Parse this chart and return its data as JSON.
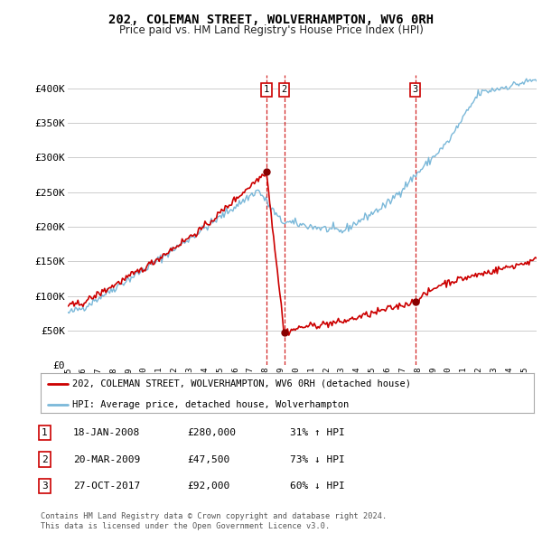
{
  "title": "202, COLEMAN STREET, WOLVERHAMPTON, WV6 0RH",
  "subtitle": "Price paid vs. HM Land Registry's House Price Index (HPI)",
  "legend_line1": "202, COLEMAN STREET, WOLVERHAMPTON, WV6 0RH (detached house)",
  "legend_line2": "HPI: Average price, detached house, Wolverhampton",
  "footer1": "Contains HM Land Registry data © Crown copyright and database right 2024.",
  "footer2": "This data is licensed under the Open Government Licence v3.0.",
  "transactions": [
    {
      "num": "1",
      "date": "18-JAN-2008",
      "price": "£280,000",
      "change": "31% ↑ HPI",
      "x_year": 2008.05,
      "y_val": 280000
    },
    {
      "num": "2",
      "date": "20-MAR-2009",
      "price": "£47,500",
      "change": "73% ↓ HPI",
      "x_year": 2009.22,
      "y_val": 47500
    },
    {
      "num": "3",
      "date": "27-OCT-2017",
      "price": "£92,000",
      "change": "60% ↓ HPI",
      "x_year": 2017.82,
      "y_val": 92000
    }
  ],
  "hpi_color": "#7ab8d9",
  "price_color": "#cc0000",
  "vline_color": "#cc0000",
  "dot_color": "#880000",
  "grid_color": "#cccccc",
  "background_color": "#ffffff",
  "ylim": [
    0,
    420000
  ],
  "xlim_start": 1995.0,
  "xlim_end": 2025.8
}
